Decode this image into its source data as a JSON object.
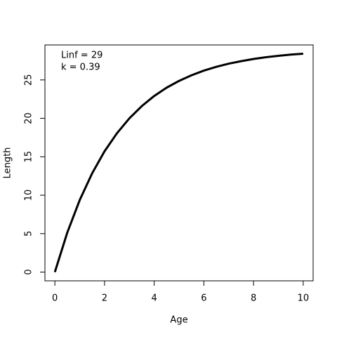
{
  "chart_data": {
    "type": "line",
    "x_label": "Age",
    "y_label": "Length",
    "annotations": [
      "Linf = 29",
      "k = 0.39"
    ],
    "x": [
      0,
      0.5,
      1,
      1.5,
      2,
      2.5,
      3,
      3.5,
      4,
      4.5,
      5,
      5.5,
      6,
      6.5,
      7,
      7.5,
      8,
      8.5,
      9,
      9.5,
      10
    ],
    "series": [
      {
        "color": "#000000",
        "values": [
          0,
          5.14,
          9.36,
          12.84,
          15.71,
          18.06,
          20.0,
          21.59,
          22.91,
          23.99,
          24.87,
          25.6,
          26.21,
          26.7,
          27.11,
          27.44,
          27.72,
          27.95,
          28.13,
          28.29,
          28.41
        ]
      }
    ],
    "xlim": [
      -0.4,
      10.4
    ],
    "ylim": [
      -1.14,
      29.55
    ],
    "xticks": [
      0,
      2,
      4,
      6,
      8,
      10
    ],
    "yticks": [
      0,
      5,
      10,
      15,
      20,
      25
    ]
  }
}
